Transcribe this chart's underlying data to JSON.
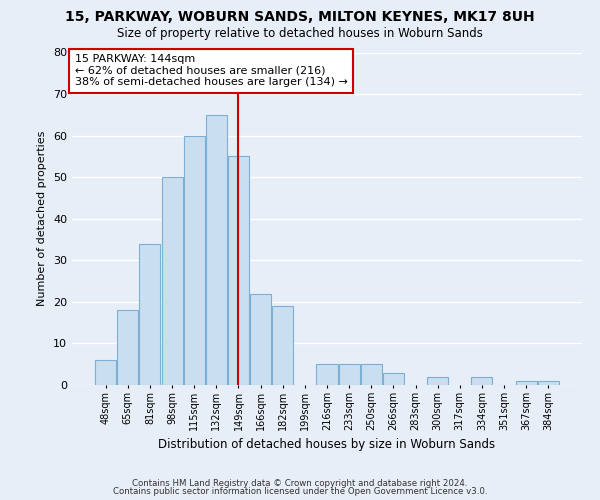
{
  "title": "15, PARKWAY, WOBURN SANDS, MILTON KEYNES, MK17 8UH",
  "subtitle": "Size of property relative to detached houses in Woburn Sands",
  "xlabel": "Distribution of detached houses by size in Woburn Sands",
  "ylabel": "Number of detached properties",
  "bar_labels": [
    "48sqm",
    "65sqm",
    "81sqm",
    "98sqm",
    "115sqm",
    "132sqm",
    "149sqm",
    "166sqm",
    "182sqm",
    "199sqm",
    "216sqm",
    "233sqm",
    "250sqm",
    "266sqm",
    "283sqm",
    "300sqm",
    "317sqm",
    "334sqm",
    "351sqm",
    "367sqm",
    "384sqm"
  ],
  "bar_values": [
    6,
    18,
    34,
    50,
    60,
    65,
    55,
    22,
    19,
    0,
    5,
    5,
    5,
    3,
    0,
    2,
    0,
    2,
    0,
    1,
    1
  ],
  "bar_color": "#c9dff0",
  "bar_edge_color": "#7bafd4",
  "vline_x_index": 6.0,
  "vline_color": "#cc0000",
  "annotation_text": "15 PARKWAY: 144sqm\n← 62% of detached houses are smaller (216)\n38% of semi-detached houses are larger (134) →",
  "annotation_box_color": "white",
  "annotation_box_edge_color": "#cc0000",
  "ylim": [
    0,
    80
  ],
  "yticks": [
    0,
    10,
    20,
    30,
    40,
    50,
    60,
    70,
    80
  ],
  "footer_line1": "Contains HM Land Registry data © Crown copyright and database right 2024.",
  "footer_line2": "Contains public sector information licensed under the Open Government Licence v3.0.",
  "bg_color": "#e8eef7",
  "plot_bg_color": "#e8eef7",
  "grid_color": "white"
}
